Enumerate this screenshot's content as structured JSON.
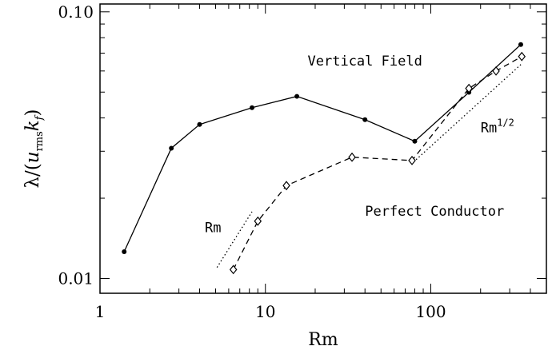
{
  "chart_data": {
    "type": "line",
    "log_x": true,
    "log_y": true,
    "xlabel": "Rm",
    "ylabel_parts": [
      "λ/(",
      "u",
      "rms",
      "k",
      "f",
      ")"
    ],
    "xlim": [
      1,
      500
    ],
    "ylim": [
      0.0088,
      0.107
    ],
    "xticks": [
      1,
      10,
      100
    ],
    "yticks": [
      0.01,
      {
        "value": 0.1,
        "label": "0.10"
      }
    ],
    "xminor": [
      2,
      3,
      4,
      5,
      6,
      7,
      8,
      9,
      20,
      30,
      40,
      50,
      60,
      70,
      80,
      90,
      200,
      300,
      400
    ],
    "yminor": [
      0.02,
      0.03,
      0.04,
      0.05,
      0.06,
      0.07,
      0.08,
      0.09
    ],
    "series": [
      {
        "color": "#000000",
        "dash": "solid",
        "marker": "circle",
        "x": [
          1.4,
          2.7,
          4,
          8.3,
          15.5,
          40,
          80,
          170,
          350
        ],
        "values": [
          0.0126,
          0.0308,
          0.0378,
          0.0437,
          0.0482,
          0.0394,
          0.0327,
          0.0499,
          0.0754
        ]
      },
      {
        "color": "#000000",
        "dash": "dashed",
        "marker": "diamond",
        "x": [
          6.4,
          9.0,
          13.4,
          33.4,
          77,
          170,
          248,
          355
        ],
        "values": [
          0.0108,
          0.0164,
          0.0223,
          0.0285,
          0.0277,
          0.0516,
          0.06,
          0.068
        ]
      }
    ],
    "reference_lines": [
      {
        "x": [
          5.1,
          8.3
        ],
        "values": [
          0.011,
          0.0178
        ]
      },
      {
        "x": [
          81.5,
          355
        ],
        "values": [
          0.0279,
          0.0639
        ]
      }
    ],
    "annotations": [
      {
        "text": "Vertical Field",
        "x": 18,
        "y": 0.063
      },
      {
        "text": "Perfect Conductor",
        "x": 40,
        "y": 0.0172
      },
      {
        "text": "Rm",
        "x": 4.3,
        "y": 0.0149
      },
      {
        "text": "Rm",
        "sup": "1/2",
        "x": 200,
        "y": 0.0354
      }
    ]
  }
}
